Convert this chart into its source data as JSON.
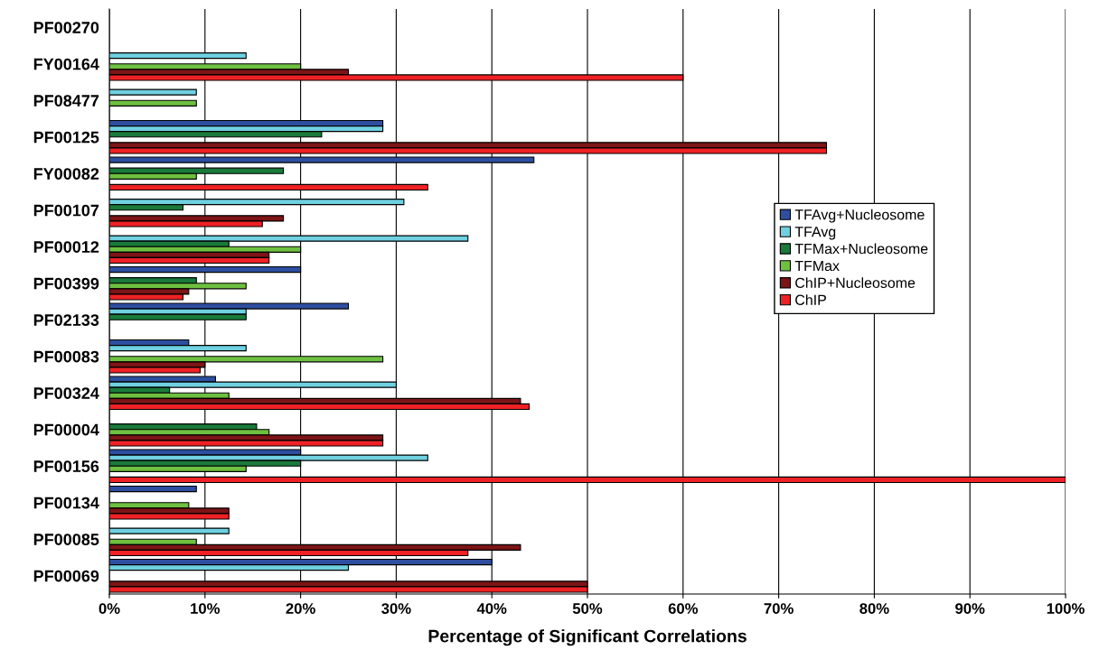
{
  "chart_data": {
    "type": "bar",
    "orientation": "horizontal",
    "xlabel": "Percentage of Significant Correlations",
    "categories": [
      "PF00270",
      "FY00164",
      "PF08477",
      "PF00125",
      "FY00082",
      "PF00107",
      "PF00012",
      "PF00399",
      "PF02133",
      "PF00083",
      "PF00324",
      "PF00004",
      "PF00156",
      "PF00134",
      "PF00085",
      "PF00069"
    ],
    "series": [
      {
        "name": "TFAvg+Nucleosome",
        "color": "#2e4fa0",
        "values": [
          null,
          null,
          null,
          28.6,
          44.4,
          null,
          null,
          20,
          25,
          8.3,
          11.1,
          null,
          20,
          9.1,
          null,
          40
        ]
      },
      {
        "name": "TFAvg",
        "color": "#6fd0e0",
        "values": [
          null,
          14.3,
          9.1,
          28.6,
          null,
          30.8,
          37.5,
          null,
          14.3,
          14.3,
          30,
          null,
          33.3,
          null,
          12.5,
          25
        ]
      },
      {
        "name": "TFMax+Nucleosome",
        "color": "#1a7a3a",
        "values": [
          null,
          null,
          null,
          22.2,
          18.2,
          7.7,
          12.5,
          9.1,
          14.3,
          null,
          6.3,
          15.4,
          20,
          null,
          null,
          null
        ]
      },
      {
        "name": "TFMax",
        "color": "#6ec040",
        "values": [
          null,
          20,
          9.1,
          null,
          9.1,
          null,
          20,
          14.3,
          null,
          28.6,
          12.5,
          16.7,
          14.3,
          8.3,
          9.1,
          null
        ]
      },
      {
        "name": "ChIP+Nucleosome",
        "color": "#7d1416",
        "values": [
          null,
          25,
          null,
          75,
          null,
          18.2,
          16.7,
          8.3,
          null,
          10,
          43,
          28.6,
          null,
          12.5,
          43,
          50
        ]
      },
      {
        "name": "ChIP",
        "color": "#ee2125",
        "values": [
          null,
          60,
          null,
          75,
          33.3,
          16,
          16.7,
          7.7,
          null,
          9.5,
          43.9,
          28.6,
          100,
          12.5,
          37.5,
          50
        ]
      }
    ],
    "xlim": [
      0,
      100
    ],
    "xticks": [
      {
        "value": 0,
        "label": "0%"
      },
      {
        "value": 10,
        "label": "10%"
      },
      {
        "value": 20,
        "label": "20%"
      },
      {
        "value": 30,
        "label": "30%"
      },
      {
        "value": 40,
        "label": "40%"
      },
      {
        "value": 50,
        "label": "50%"
      },
      {
        "value": 60,
        "label": "60%"
      },
      {
        "value": 70,
        "label": "70%"
      },
      {
        "value": 80,
        "label": "80%"
      },
      {
        "value": 90,
        "label": "90%"
      },
      {
        "value": 100,
        "label": "100%"
      }
    ],
    "grid": "x",
    "legend": "right"
  }
}
